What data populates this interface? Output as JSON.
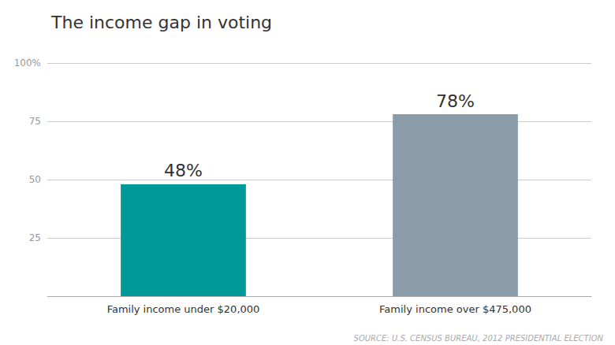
{
  "chart_data": {
    "type": "bar",
    "title": "The income gap in voting",
    "categories": [
      "Family income under $20,000",
      "Family income over $475,000"
    ],
    "values": [
      48,
      78
    ],
    "value_labels": [
      "48%",
      "78%"
    ],
    "colors": [
      "#009999",
      "#8a9baa"
    ],
    "data_labels": true,
    "ylim": [
      0,
      100
    ],
    "yticks": [
      25,
      50,
      75,
      {
        "value": 100,
        "label": "100%"
      }
    ],
    "grid": true,
    "annotations": [
      "SOURCE: U.S. CENSUS BUREAU, 2012 PRESIDENTIAL ELECTION"
    ]
  }
}
